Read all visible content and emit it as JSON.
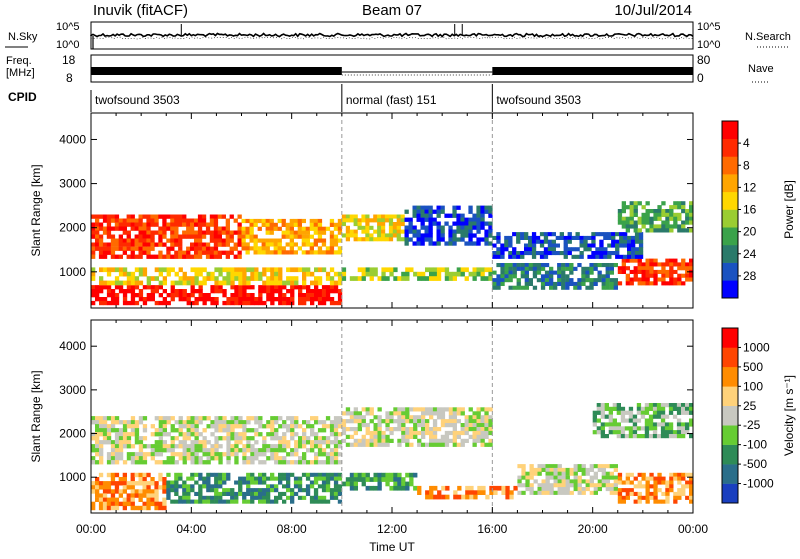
{
  "header": {
    "station": "Inuvik (fitACF)",
    "beam": "Beam 07",
    "date": "10/Jul/2014"
  },
  "top_panels": {
    "nsky_label": "N.Sky",
    "nsky_ticks": [
      "10^5",
      "10^0"
    ],
    "nsearch_label": "N.Search",
    "nsearch_ticks": [
      "10^5",
      "10^0"
    ],
    "freq_label_1": "Freq.",
    "freq_label_2": "[MHz]",
    "freq_ticks": [
      "18",
      "8"
    ],
    "nave_label": "Nave",
    "nave_ticks": [
      "80",
      "0"
    ],
    "cpid_label": "CPID",
    "modes": [
      {
        "name": "twofsound 3503",
        "start": 0,
        "end": 10
      },
      {
        "name": "normal (fast) 151",
        "start": 10,
        "end": 16
      },
      {
        "name": "twofsound 3503",
        "start": 16,
        "end": 24
      }
    ]
  },
  "chart_data": [
    {
      "type": "heatmap",
      "name": "power",
      "xlabel": "Time UT",
      "ylabel": "Slant Range [km]",
      "xlim": [
        0,
        24
      ],
      "ylim": [
        180,
        4600
      ],
      "x_tick_labels": [
        "00:00",
        "04:00",
        "08:00",
        "12:00",
        "16:00",
        "20:00",
        "00:00"
      ],
      "y_ticks": [
        1000,
        2000,
        3000,
        4000
      ],
      "colorbar": {
        "label": "Power [dB]",
        "ticks": [
          "4",
          "8",
          "12",
          "16",
          "20",
          "24",
          "28"
        ],
        "colors": [
          "#0000ff",
          "#1a52c0",
          "#2a7a6a",
          "#3aa24a",
          "#9acd32",
          "#ffd700",
          "#ffa500",
          "#ff6a00",
          "#ff2a00",
          "#ff0000"
        ]
      },
      "bands": [
        {
          "t0": 0.0,
          "t1": 10.0,
          "r0": 250,
          "r1": 700,
          "level": 9
        },
        {
          "t0": 0.0,
          "t1": 10.0,
          "r0": 700,
          "r1": 1100,
          "level": 5
        },
        {
          "t0": 10.0,
          "t1": 16.0,
          "r0": 800,
          "r1": 1100,
          "level": 4
        },
        {
          "t0": 16.0,
          "t1": 21.0,
          "r0": 600,
          "r1": 1200,
          "level": 2
        },
        {
          "t0": 21.0,
          "t1": 24.0,
          "r0": 700,
          "r1": 1300,
          "level": 8
        },
        {
          "t0": 0.0,
          "t1": 6.0,
          "r0": 1300,
          "r1": 2300,
          "level": 8
        },
        {
          "t0": 6.0,
          "t1": 10.0,
          "r0": 1400,
          "r1": 2200,
          "level": 6
        },
        {
          "t0": 10.0,
          "t1": 12.5,
          "r0": 1700,
          "r1": 2300,
          "level": 5
        },
        {
          "t0": 12.5,
          "t1": 16.0,
          "r0": 1600,
          "r1": 2500,
          "level": 1
        },
        {
          "t0": 16.0,
          "t1": 22.0,
          "r0": 1300,
          "r1": 1900,
          "level": 1
        },
        {
          "t0": 21.0,
          "t1": 24.0,
          "r0": 1900,
          "r1": 2600,
          "level": 3
        }
      ]
    },
    {
      "type": "heatmap",
      "name": "velocity",
      "xlabel": "Time UT",
      "ylabel": "Slant Range [km]",
      "xlim": [
        0,
        24
      ],
      "ylim": [
        180,
        4600
      ],
      "x_tick_labels": [
        "00:00",
        "04:00",
        "08:00",
        "12:00",
        "16:00",
        "20:00",
        "00:00"
      ],
      "y_ticks": [
        1000,
        2000,
        3000,
        4000
      ],
      "colorbar": {
        "label": "Velocity [m s⁻¹]",
        "ticks": [
          "1000",
          "500",
          "100",
          "25",
          "-25",
          "-100",
          "-500",
          "-1000"
        ],
        "colors": [
          "#1a3fbf",
          "#2a6e8a",
          "#2e8b57",
          "#66cc33",
          "#c8c8c0",
          "#ffd27a",
          "#ff8c00",
          "#ff4500",
          "#ff0000"
        ]
      },
      "bands": [
        {
          "t0": 0.0,
          "t1": 3.0,
          "r0": 250,
          "r1": 1100,
          "level": 6
        },
        {
          "t0": 3.0,
          "t1": 10.0,
          "r0": 400,
          "r1": 1100,
          "level": 2
        },
        {
          "t0": 0.0,
          "t1": 10.0,
          "r0": 1300,
          "r1": 2400,
          "level": 4
        },
        {
          "t0": 10.0,
          "t1": 16.0,
          "r0": 1700,
          "r1": 2600,
          "level": 4
        },
        {
          "t0": 10.0,
          "t1": 13.0,
          "r0": 700,
          "r1": 1100,
          "level": 2
        },
        {
          "t0": 13.0,
          "t1": 17.0,
          "r0": 500,
          "r1": 800,
          "level": 6
        },
        {
          "t0": 17.0,
          "t1": 21.0,
          "r0": 600,
          "r1": 1300,
          "level": 4
        },
        {
          "t0": 21.0,
          "t1": 24.0,
          "r0": 400,
          "r1": 1100,
          "level": 6
        },
        {
          "t0": 20.0,
          "t1": 24.0,
          "r0": 1900,
          "r1": 2700,
          "level": 3
        }
      ]
    }
  ]
}
